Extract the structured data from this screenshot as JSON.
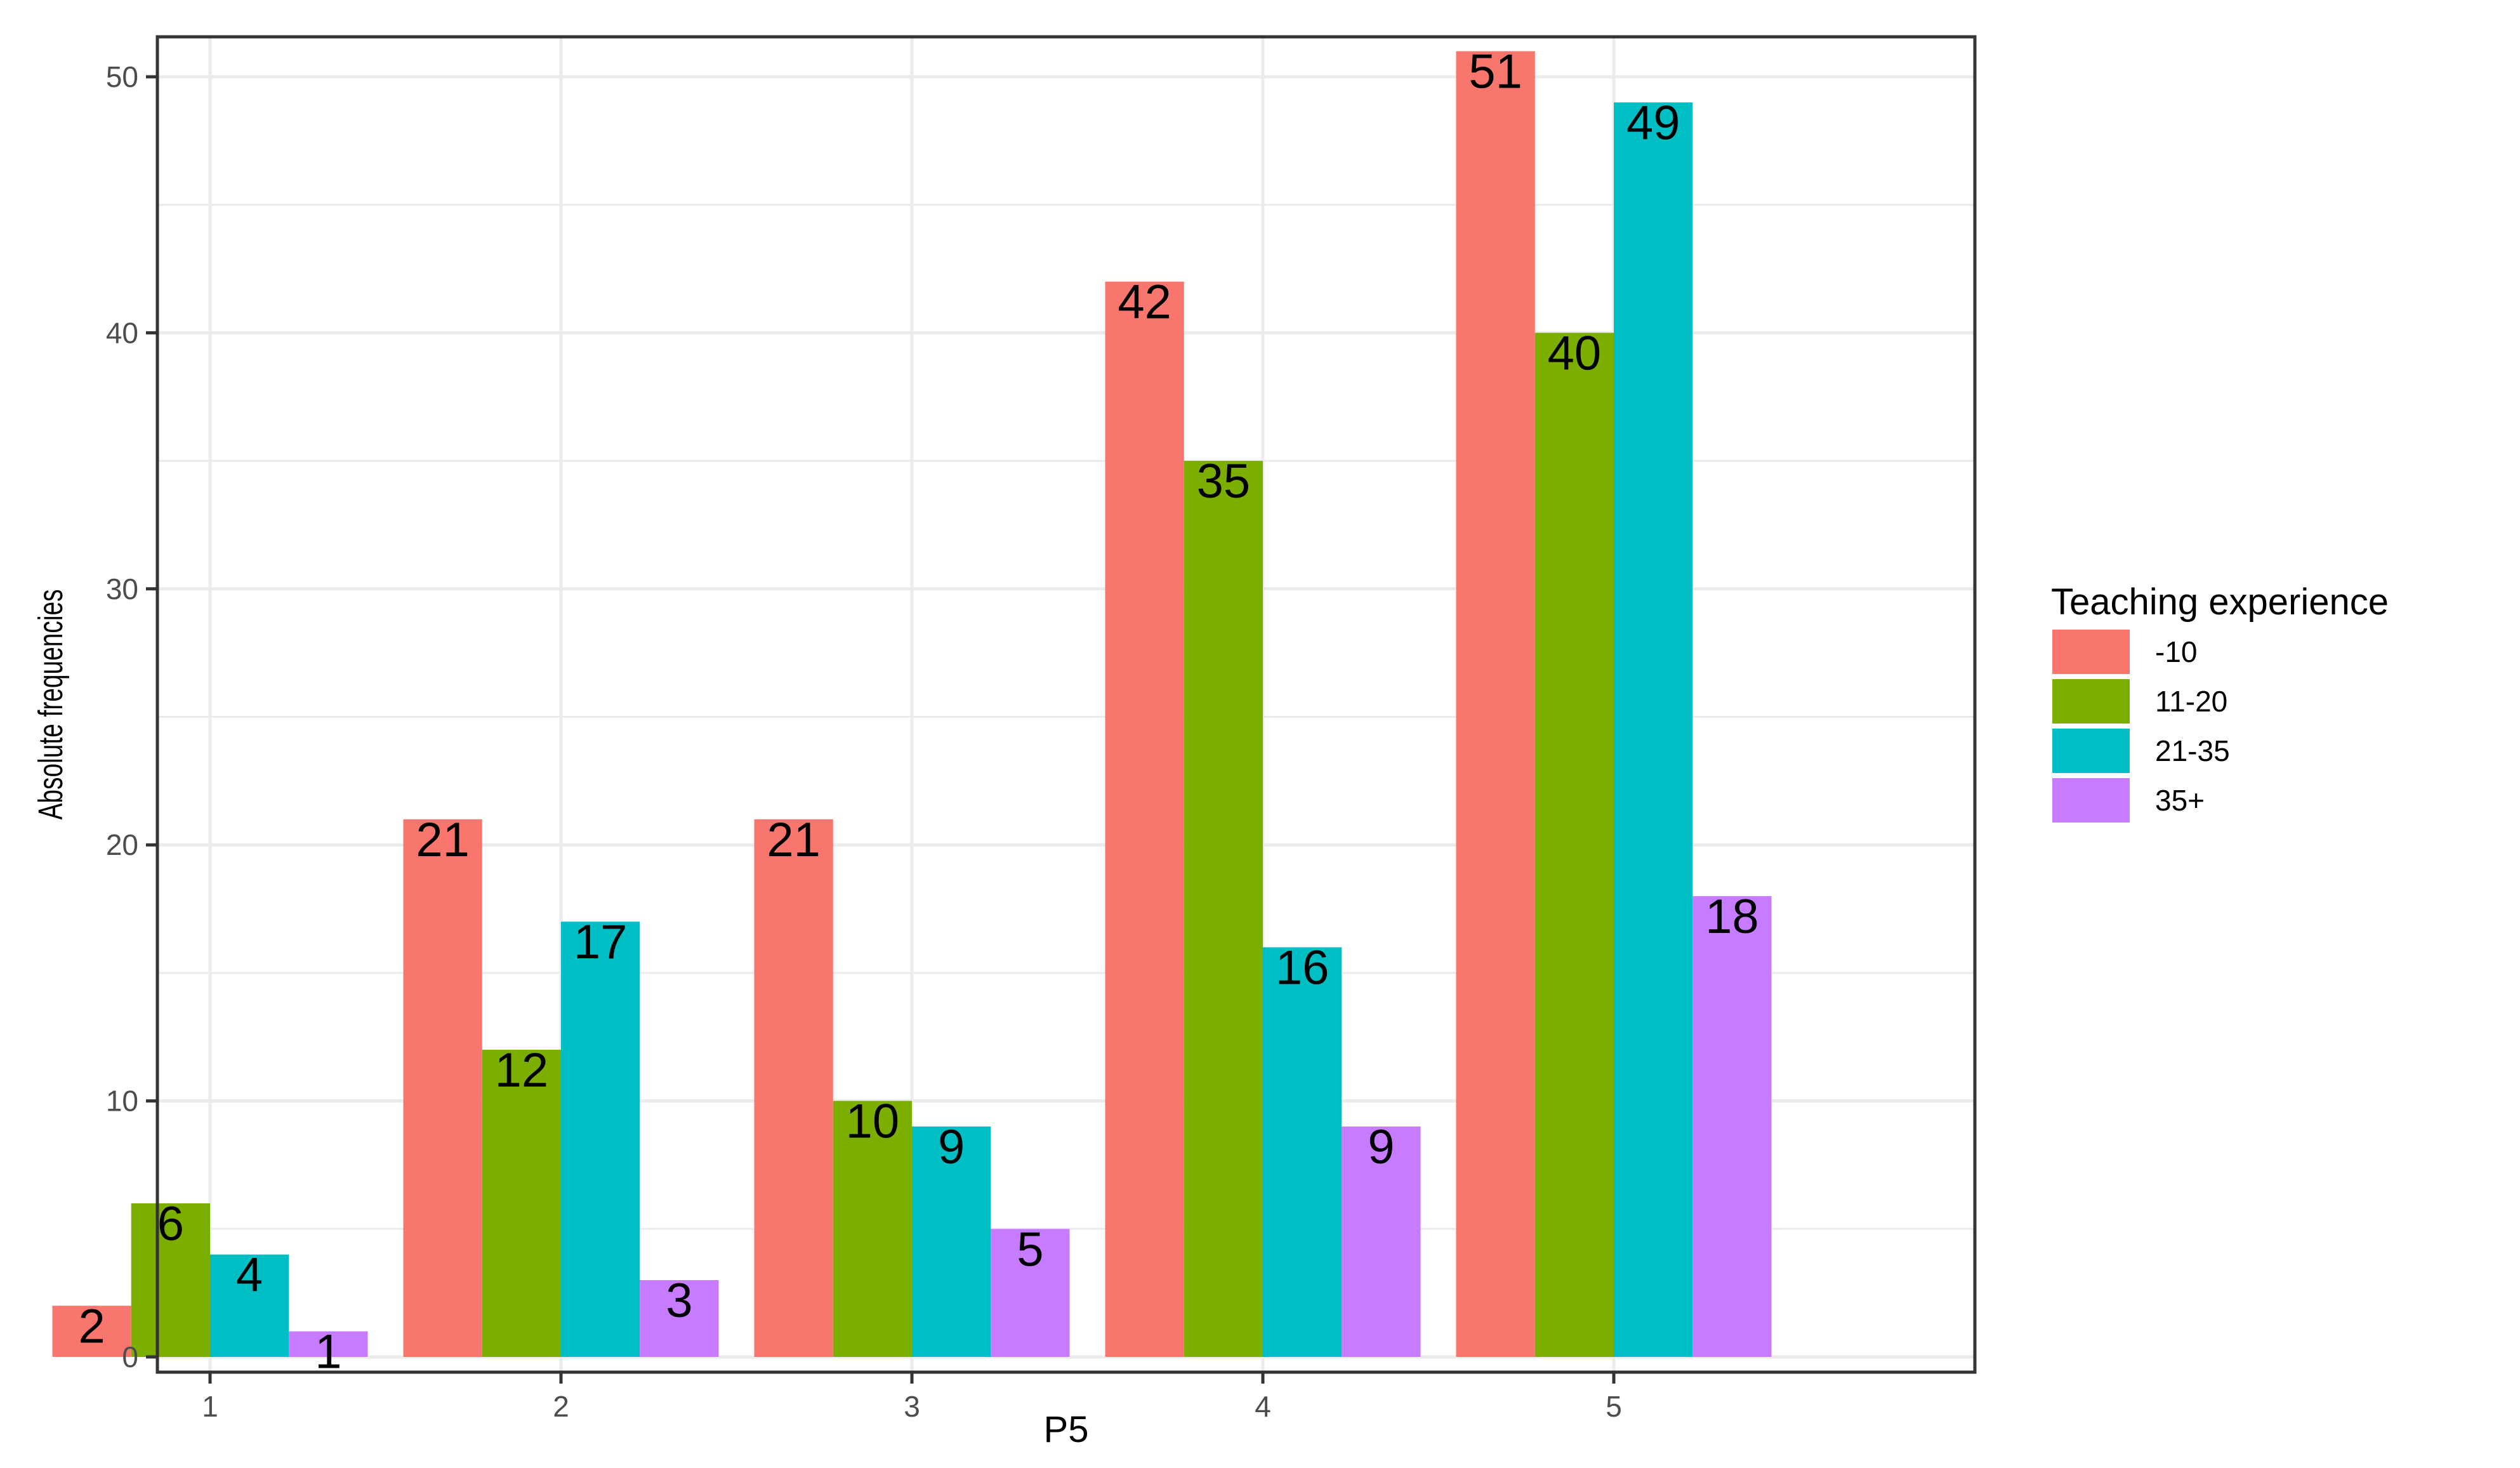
{
  "chart_data": {
    "type": "bar",
    "xlabel": "P5",
    "ylabel": "Absolute frequencies",
    "categories": [
      "1",
      "2",
      "3",
      "4",
      "5"
    ],
    "ylim": [
      0,
      51.5
    ],
    "yticks": [
      0,
      10,
      20,
      30,
      40,
      50
    ],
    "grid": true,
    "legend": {
      "title": "Teaching experience",
      "placement": "right"
    },
    "series": [
      {
        "name": "-10",
        "color": "#F8766D",
        "values": [
          2,
          21,
          21,
          42,
          51
        ]
      },
      {
        "name": "11-20",
        "color": "#7CAE00",
        "values": [
          6,
          12,
          10,
          35,
          40
        ]
      },
      {
        "name": "21-35",
        "color": "#00BFC4",
        "values": [
          4,
          17,
          9,
          16,
          49
        ]
      },
      {
        "name": "35+",
        "color": "#C77CFF",
        "values": [
          1,
          3,
          5,
          9,
          18
        ]
      }
    ]
  }
}
